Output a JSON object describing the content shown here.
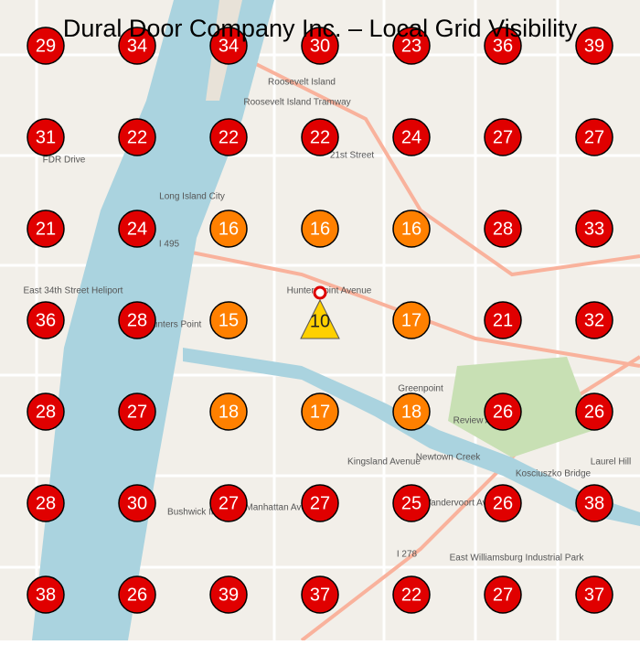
{
  "title": "Dural Door Company Inc. – Local Grid Visibility",
  "grid": {
    "rows": [
      [
        {
          "value": 29,
          "color": "#e00000"
        },
        {
          "value": 34,
          "color": "#e00000"
        },
        {
          "value": 34,
          "color": "#e00000"
        },
        {
          "value": 30,
          "color": "#e00000"
        },
        {
          "value": 23,
          "color": "#e00000"
        },
        {
          "value": 36,
          "color": "#e00000"
        },
        {
          "value": 39,
          "color": "#e00000"
        }
      ],
      [
        {
          "value": 31,
          "color": "#e00000"
        },
        {
          "value": 22,
          "color": "#e00000"
        },
        {
          "value": 22,
          "color": "#e00000"
        },
        {
          "value": 22,
          "color": "#e00000"
        },
        {
          "value": 24,
          "color": "#e00000"
        },
        {
          "value": 27,
          "color": "#e00000"
        },
        {
          "value": 27,
          "color": "#e00000"
        }
      ],
      [
        {
          "value": 21,
          "color": "#e00000"
        },
        {
          "value": 24,
          "color": "#e00000"
        },
        {
          "value": 16,
          "color": "#ff8000"
        },
        {
          "value": 16,
          "color": "#ff8000"
        },
        {
          "value": 16,
          "color": "#ff8000"
        },
        {
          "value": 28,
          "color": "#e00000"
        },
        {
          "value": 33,
          "color": "#e00000"
        }
      ],
      [
        {
          "value": 36,
          "color": "#e00000"
        },
        {
          "value": 28,
          "color": "#e00000"
        },
        {
          "value": 15,
          "color": "#ff8000"
        },
        {
          "value": 10,
          "color": "#ffd000",
          "shape": "triangle"
        },
        {
          "value": 17,
          "color": "#ff8000"
        },
        {
          "value": 21,
          "color": "#e00000"
        },
        {
          "value": 32,
          "color": "#e00000"
        }
      ],
      [
        {
          "value": 28,
          "color": "#e00000"
        },
        {
          "value": 27,
          "color": "#e00000"
        },
        {
          "value": 18,
          "color": "#ff8000"
        },
        {
          "value": 17,
          "color": "#ff8000"
        },
        {
          "value": 18,
          "color": "#ff8000"
        },
        {
          "value": 26,
          "color": "#e00000"
        },
        {
          "value": 26,
          "color": "#e00000"
        }
      ],
      [
        {
          "value": 28,
          "color": "#e00000"
        },
        {
          "value": 30,
          "color": "#e00000"
        },
        {
          "value": 27,
          "color": "#e00000"
        },
        {
          "value": 27,
          "color": "#e00000"
        },
        {
          "value": 25,
          "color": "#e00000"
        },
        {
          "value": 26,
          "color": "#e00000"
        },
        {
          "value": 38,
          "color": "#e00000"
        }
      ],
      [
        {
          "value": 38,
          "color": "#e00000"
        },
        {
          "value": 26,
          "color": "#e00000"
        },
        {
          "value": 39,
          "color": "#e00000"
        },
        {
          "value": 37,
          "color": "#e00000"
        },
        {
          "value": 22,
          "color": "#e00000"
        },
        {
          "value": 27,
          "color": "#e00000"
        },
        {
          "value": 37,
          "color": "#e00000"
        }
      ]
    ]
  },
  "map_labels": [
    "Roosevelt Island",
    "Roosevelt Island Tramway",
    "Long Island City",
    "Hunters Point",
    "Greenpoint",
    "Kosciuszko Bridge",
    "East Williamsburg Industrial Park",
    "Bushwick Inlet",
    "Manhattan Avenue",
    "Kingsland Avenue",
    "Vandervoort Avenue",
    "I 495",
    "I 278",
    "FDR Drive",
    "East 34th Street Heliport",
    "Laurel Hill",
    "Newtown Creek",
    "Review Avenue",
    "21st Street",
    "Hunterspoint Avenue"
  ]
}
